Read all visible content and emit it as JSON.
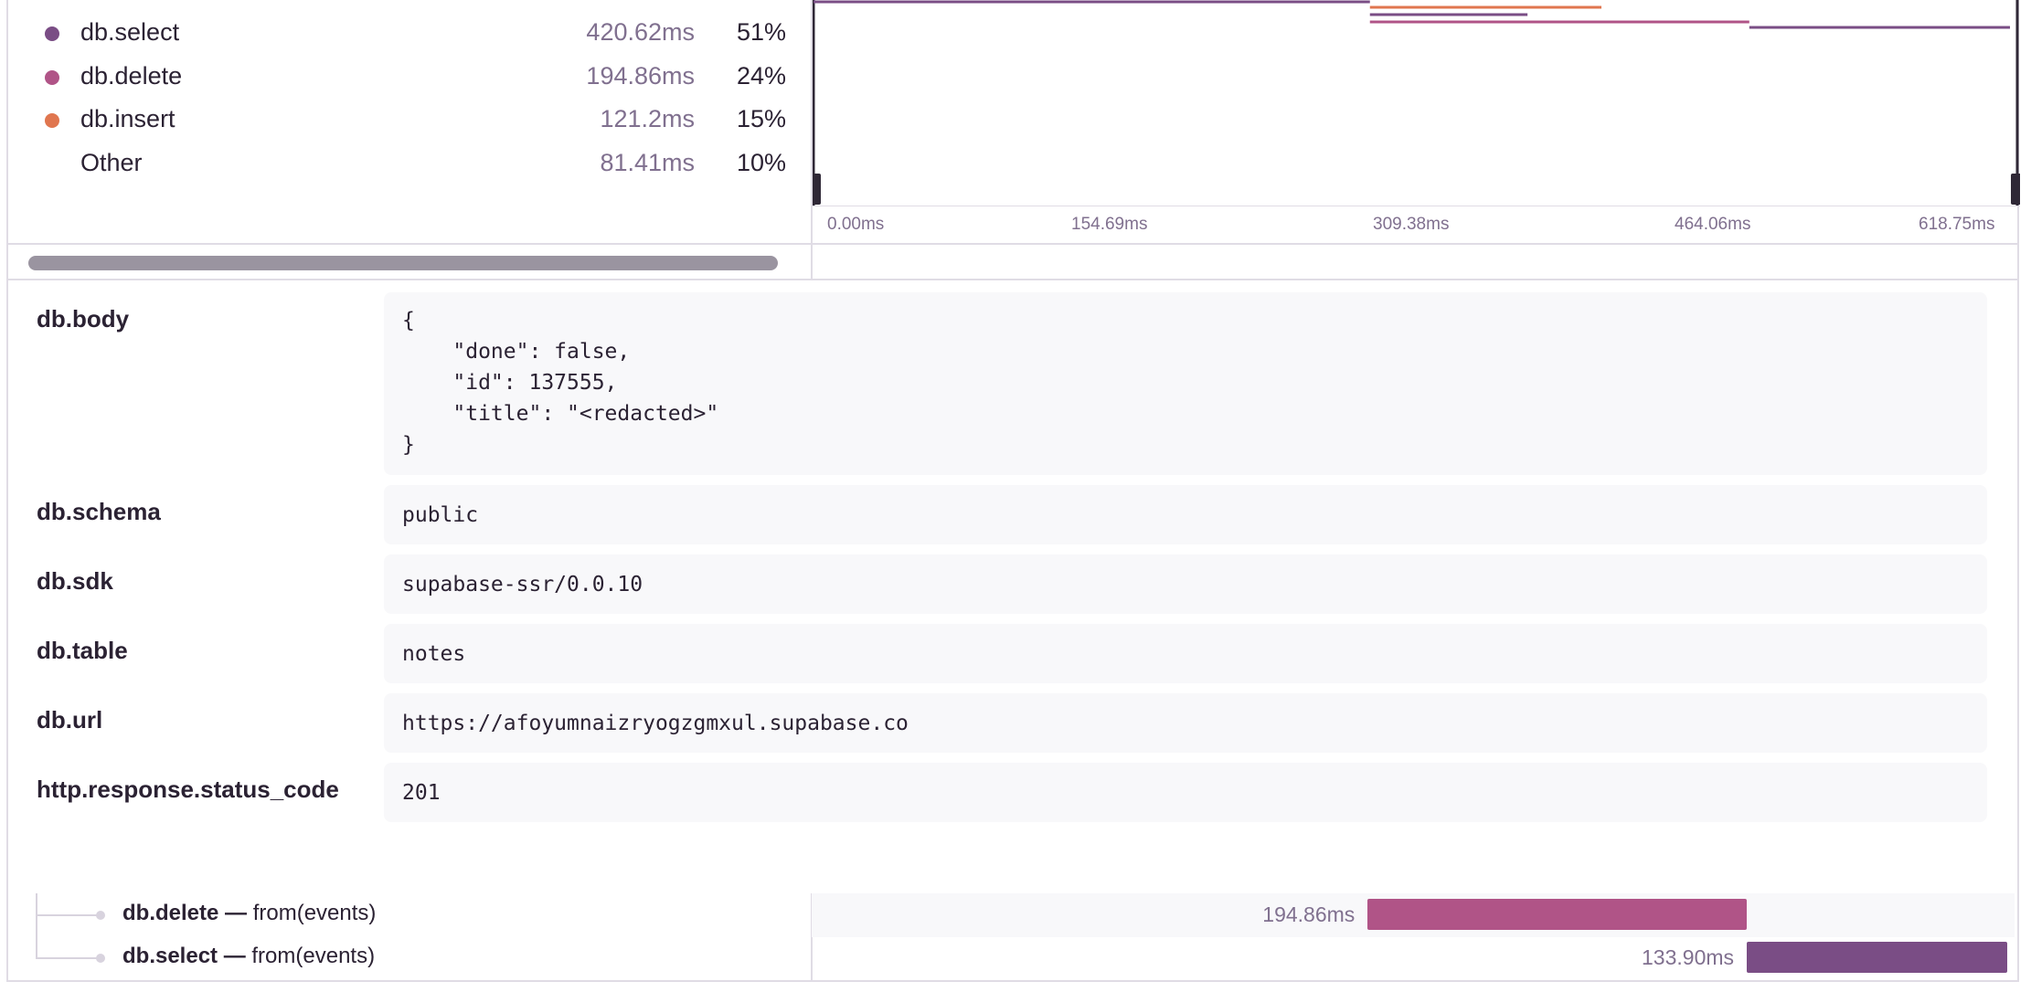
{
  "legend": [
    {
      "name": "db.select",
      "duration": "420.62ms",
      "percent": "51%",
      "color": "#7a4d85"
    },
    {
      "name": "db.delete",
      "duration": "194.86ms",
      "percent": "24%",
      "color": "#b05487"
    },
    {
      "name": "db.insert",
      "duration": "121.2ms",
      "percent": "15%",
      "color": "#e0764f"
    },
    {
      "name": "Other",
      "duration": "81.41ms",
      "percent": "10%",
      "color": ""
    }
  ],
  "minimap": {
    "axis_labels": [
      "0.00ms",
      "154.69ms",
      "309.38ms",
      "464.06ms",
      "618.75ms"
    ],
    "spans": [
      {
        "start_ms": 0,
        "end_ms": 286,
        "color": "#7a4d85"
      },
      {
        "start_ms": 286,
        "end_ms": 405,
        "color": "#e0764f"
      },
      {
        "start_ms": 286,
        "end_ms": 367,
        "color": "#7a4d85"
      },
      {
        "start_ms": 286,
        "end_ms": 481,
        "color": "#b05487"
      },
      {
        "start_ms": 481,
        "end_ms": 615,
        "color": "#7a4d85"
      }
    ]
  },
  "attributes": [
    {
      "key": "db.body",
      "value": "{\n    \"done\": false,\n    \"id\": 137555,\n    \"title\": \"<redacted>\"\n}"
    },
    {
      "key": "db.schema",
      "value": "public"
    },
    {
      "key": "db.sdk",
      "value": "supabase-ssr/0.0.10"
    },
    {
      "key": "db.table",
      "value": "notes"
    },
    {
      "key": "db.url",
      "value": "https://afoyumnaizryogzgmxul.supabase.co"
    },
    {
      "key": "http.response.status_code",
      "value": "201"
    }
  ],
  "span_rows": [
    {
      "op": "db.delete —",
      "desc": "from(events)",
      "duration": "194.86ms",
      "start_ms": 286,
      "dur_ms": 194.86,
      "color": "#b05487"
    },
    {
      "op": "db.select —",
      "desc": "from(events)",
      "duration": "133.90ms",
      "start_ms": 481,
      "dur_ms": 133.9,
      "color": "#7a4d85"
    }
  ]
}
